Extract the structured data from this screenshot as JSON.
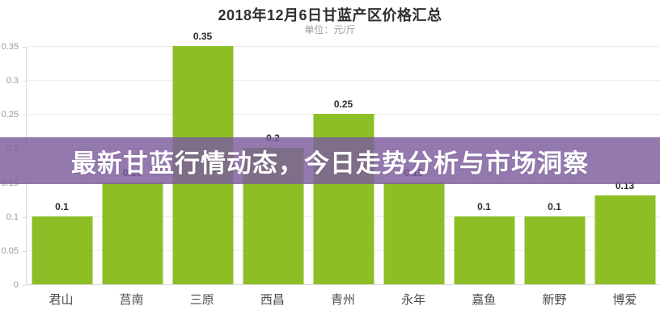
{
  "header": {
    "title": "2018年12月6日甘蓝产区价格汇总",
    "subtitle": "单位：元/斤"
  },
  "banner": {
    "text": "最新甘蓝行情动态，今日走势分析与市场洞察",
    "background_rgba": "rgba(124, 92, 158, 0.82)",
    "text_color": "#ffffff"
  },
  "chart_data": {
    "type": "bar",
    "title": "2018年12月6日甘蓝产区价格汇总",
    "subtitle": "单位：元/斤",
    "categories": [
      "君山",
      "莒南",
      "三原",
      "西昌",
      "青州",
      "永年",
      "嘉鱼",
      "新野",
      "博爱"
    ],
    "values": [
      0.1,
      0.15,
      0.35,
      0.2,
      0.25,
      0.15,
      0.1,
      0.1,
      0.13
    ],
    "value_labels": [
      "0.1",
      "0.15",
      "0.35",
      "0.2",
      "0.25",
      "0.15",
      "0.1",
      "0.1",
      "0.13"
    ],
    "xlabel": "",
    "ylabel": "单位：元/斤",
    "ylim": [
      0,
      0.35
    ],
    "yticks": [
      0,
      0.05,
      0.1,
      0.15,
      0.2,
      0.25,
      0.3,
      0.35
    ],
    "ytick_labels": [
      "0",
      "0.05",
      "0.1",
      "0.15",
      "0.2",
      "0.25",
      "0.3",
      "0.35"
    ],
    "grid": true,
    "legend": "none",
    "bar_color": "#8cbf26"
  },
  "colors": {
    "background": "#ffffff",
    "bar": "#8cbf26",
    "gridline": "#ececec",
    "axis_line": "#d9d9d9",
    "title_text": "#2f2f2f",
    "subtitle_text": "#9b9b9b",
    "tick_text": "#999999",
    "category_text": "#4d4d4d",
    "value_label_text": "#2b2b2b"
  }
}
